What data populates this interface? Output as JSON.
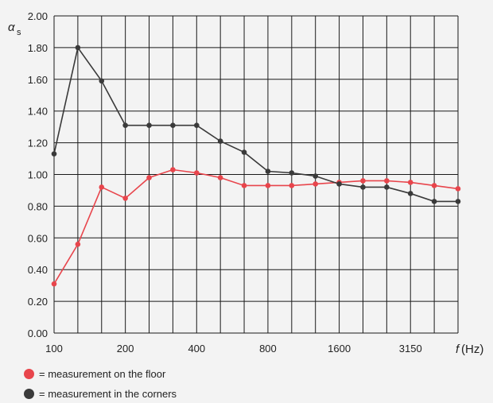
{
  "chart_data": {
    "type": "line",
    "x": [
      "100",
      "125",
      "160",
      "200",
      "250",
      "315",
      "400",
      "500",
      "630",
      "800",
      "1000",
      "1250",
      "1600",
      "2000",
      "2500",
      "3150",
      "4000",
      "5000"
    ],
    "x_tick_labels": [
      "100",
      "200",
      "400",
      "800",
      "1600",
      "3150"
    ],
    "y_ticks": [
      "0.00",
      "0.20",
      "0.40",
      "0.60",
      "0.80",
      "1.00",
      "1.20",
      "1.40",
      "1.60",
      "1.80",
      "2.00"
    ],
    "ylim": [
      0,
      2.0
    ],
    "ylabel": "α",
    "ylabel_sub": "s",
    "xlabel_symbol": "f",
    "xlabel_unit": " (Hz)",
    "grid": true,
    "series": [
      {
        "name": "= measurement on the floor",
        "color": "#e8454c",
        "values": [
          0.31,
          0.56,
          0.92,
          0.85,
          0.98,
          1.03,
          1.01,
          0.98,
          0.93,
          0.93,
          0.93,
          0.94,
          0.95,
          0.96,
          0.96,
          0.95,
          0.93,
          0.91
        ]
      },
      {
        "name": "= measurement in the corners",
        "color": "#3a3a3a",
        "values": [
          1.13,
          1.8,
          1.59,
          1.31,
          1.31,
          1.31,
          1.31,
          1.21,
          1.14,
          1.02,
          1.01,
          0.99,
          0.94,
          0.92,
          0.92,
          0.88,
          0.83,
          0.83
        ]
      }
    ],
    "legend": "bottom-left"
  },
  "legend": {
    "floor_label": "= measurement on the floor",
    "corners_label": "= measurement in the corners",
    "floor_color": "#e8454c",
    "corners_color": "#3a3a3a"
  }
}
